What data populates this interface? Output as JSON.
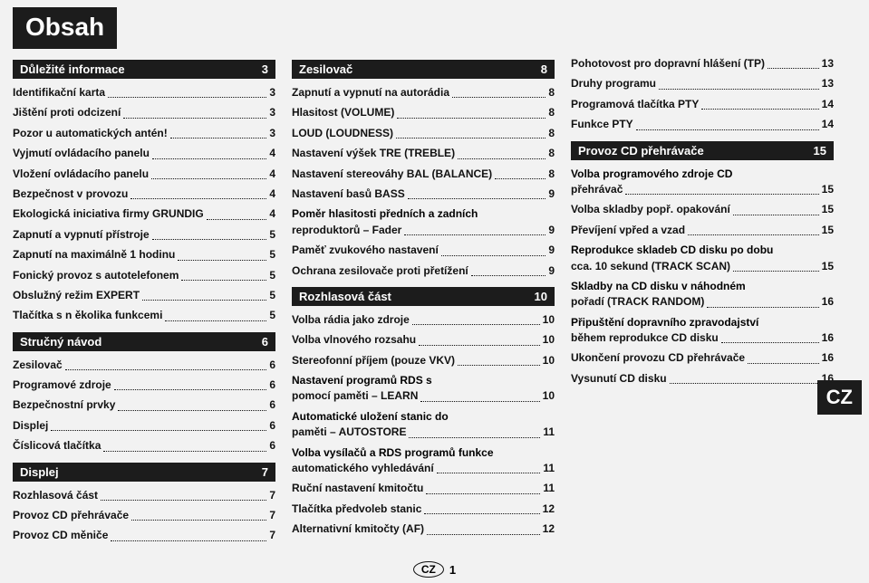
{
  "title": "Obsah",
  "sideBadge": "CZ",
  "footer": {
    "regionLabel": "CZ",
    "pageNumber": "1"
  },
  "col1": {
    "sections": [
      {
        "header": {
          "label": "Důležité informace",
          "page": "3"
        },
        "items": [
          {
            "label": "Identifikační karta",
            "page": "3"
          },
          {
            "label": "Jištění proti odcizení",
            "page": "3"
          },
          {
            "label": "Pozor u automatických antén!",
            "page": "3"
          },
          {
            "label": "Vyjmutí ovládacího panelu",
            "page": "4"
          },
          {
            "label": "Vložení ovládacího panelu",
            "page": "4"
          },
          {
            "label": "Bezpečnost v provozu",
            "page": "4"
          },
          {
            "label": "Ekologická iniciativa firmy GRUNDIG",
            "page": "4"
          },
          {
            "label": "Zapnutí a vypnutí přístroje",
            "page": "5"
          },
          {
            "label": "Zapnutí na maximálně 1 hodinu",
            "page": "5"
          },
          {
            "label": "Fonický provoz s autotelefonem",
            "page": "5"
          },
          {
            "label": "Obslužný režim EXPERT",
            "page": "5"
          },
          {
            "label": "Tlačítka s n ěkolika funkcemi",
            "page": "5"
          }
        ]
      },
      {
        "header": {
          "label": "Stručný návod",
          "page": "6"
        },
        "items": [
          {
            "label": "Zesilovač",
            "page": "6"
          },
          {
            "label": "Programové zdroje",
            "page": "6"
          },
          {
            "label": "Bezpečnostní prvky",
            "page": "6"
          },
          {
            "label": "Displej",
            "page": "6"
          },
          {
            "label": "Číslicová tlačítka",
            "page": "6"
          }
        ]
      },
      {
        "header": {
          "label": "Displej",
          "page": "7"
        },
        "items": [
          {
            "label": "Rozhlasová část",
            "page": "7"
          },
          {
            "label": "Provoz CD přehrávače",
            "page": "7"
          },
          {
            "label": "Provoz CD měniče",
            "page": "7"
          }
        ]
      }
    ]
  },
  "col2": {
    "sections": [
      {
        "header": {
          "label": "Zesilovač",
          "page": "8"
        },
        "items": [
          {
            "label": "Zapnutí a vypnutí na autorádia",
            "page": "8"
          },
          {
            "label": "Hlasitost (VOLUME)",
            "page": "8"
          },
          {
            "label": "LOUD (LOUDNESS)",
            "page": "8"
          },
          {
            "label": "Nastavení výšek TRE (TREBLE)",
            "page": "8"
          },
          {
            "label": "Nastavení stereováhy BAL (BALANCE)",
            "page": "8"
          },
          {
            "label": "Nastavení basů BASS",
            "page": "9"
          },
          {
            "label": "Poměr hlasitosti předních a zadních\nreproduktorů – Fader",
            "page": "9",
            "multi": true
          },
          {
            "label": "Paměť zvukového nastavení",
            "page": "9"
          },
          {
            "label": "Ochrana zesilovače proti přetížení",
            "page": "9"
          }
        ]
      },
      {
        "header": {
          "label": "Rozhlasová část",
          "page": "10"
        },
        "items": [
          {
            "label": "Volba rádia jako zdroje",
            "page": "10"
          },
          {
            "label": "Volba vlnového rozsahu",
            "page": "10"
          },
          {
            "label": "Stereofonní příjem (pouze VKV)",
            "page": "10"
          },
          {
            "label": "Nastavení programů RDS s\npomocí paměti – LEARN",
            "page": "10",
            "multi": true
          },
          {
            "label": "Automatické uložení stanic do\npaměti – AUTOSTORE",
            "page": "11",
            "multi": true
          },
          {
            "label": "Volba vysílačů a RDS programů funkce\nautomatického vyhledávání",
            "page": "11",
            "multi": true
          },
          {
            "label": "Ruční nastavení kmitočtu",
            "page": "11"
          },
          {
            "label": "Tlačítka předvoleb stanic",
            "page": "12"
          },
          {
            "label": "Alternativní kmitočty (AF)",
            "page": "12"
          }
        ]
      }
    ]
  },
  "col3": {
    "looseItems": [
      {
        "label": "Pohotovost pro dopravní hlášení (TP)",
        "page": "13"
      },
      {
        "label": "Druhy programu",
        "page": "13"
      },
      {
        "label": "Programová tlačítka PTY",
        "page": "14"
      },
      {
        "label": "Funkce PTY",
        "page": "14"
      }
    ],
    "sections": [
      {
        "header": {
          "label": "Provoz CD přehrávače",
          "page": "15"
        },
        "items": [
          {
            "label": "Volba programového zdroje CD\npřehrávač",
            "page": "15",
            "multi": true
          },
          {
            "label": "Volba skladby popř. opakování",
            "page": "15"
          },
          {
            "label": "Převíjení vpřed a vzad",
            "page": "15"
          },
          {
            "label": "Reprodukce skladeb CD disku po dobu\ncca. 10 sekund (TRACK SCAN)",
            "page": "15",
            "multi": true
          },
          {
            "label": "Skladby na CD disku v náhodném\npořadí (TRACK RANDOM)",
            "page": "16",
            "multi": true
          },
          {
            "label": "Připuštění dopravního zpravodajství\nběhem reprodukce CD disku",
            "page": "16",
            "multi": true
          },
          {
            "label": "Ukončení provozu CD přehrávače",
            "page": "16"
          },
          {
            "label": "Vysunutí CD disku",
            "page": "16"
          }
        ]
      }
    ]
  }
}
